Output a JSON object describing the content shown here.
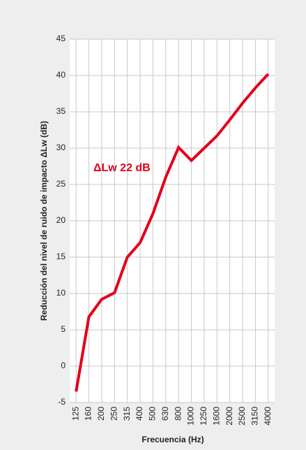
{
  "chart_data": {
    "type": "line",
    "x_label": "Frecuencia (Hz)",
    "y_label": "Reducción del nivel de ruido de impacto ΔLw (dB)",
    "annotation": "ΔLw 22 dB",
    "categories": [
      "125",
      "160",
      "200",
      "250",
      "315",
      "400",
      "500",
      "630",
      "800",
      "1000",
      "1250",
      "1600",
      "2000",
      "2500",
      "3150",
      "4000"
    ],
    "series": [
      {
        "color": "#e2001a",
        "values": [
          -3.5,
          6.8,
          9.2,
          10.1,
          15,
          17,
          21,
          26,
          30.1,
          28.3,
          30,
          31.7,
          33.9,
          36.2,
          38.3,
          40.2
        ]
      }
    ],
    "ylim": [
      -5,
      45
    ],
    "yticks": [
      -5,
      0,
      5,
      10,
      15,
      20,
      25,
      30,
      35,
      40,
      45
    ],
    "grid": true
  }
}
